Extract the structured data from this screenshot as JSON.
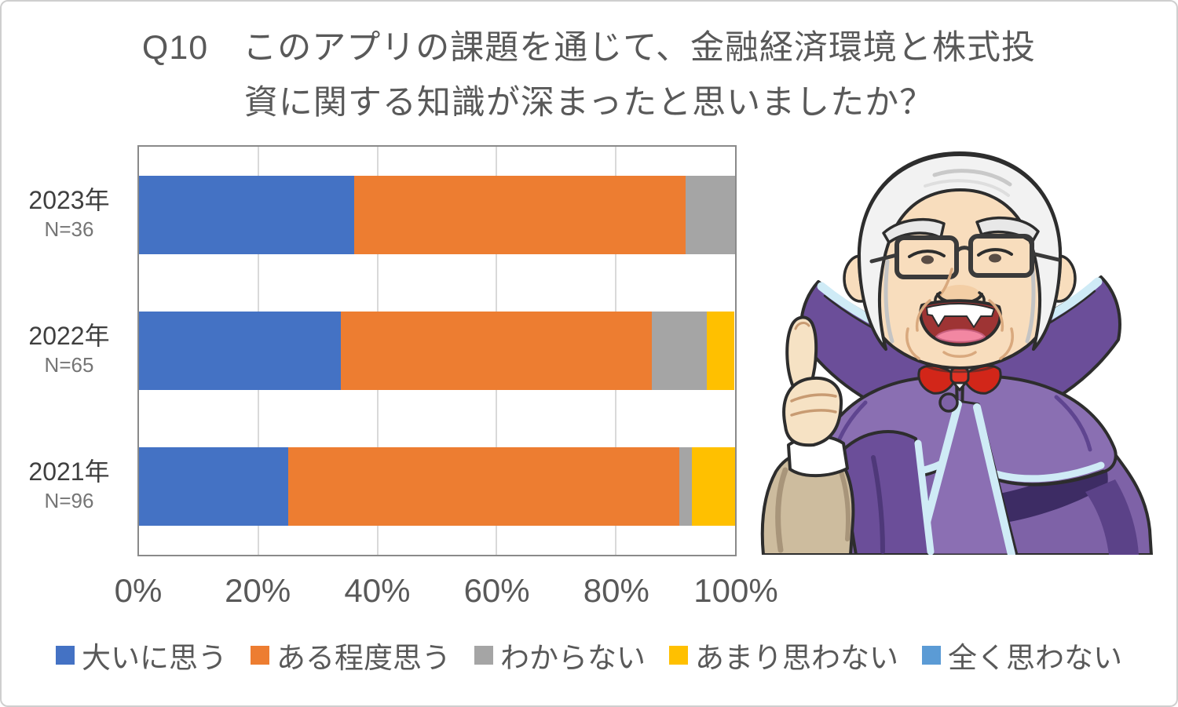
{
  "page": {
    "background": "#ffffff",
    "border_color": "#cfcfcf"
  },
  "chart_data": {
    "type": "bar",
    "stacked": true,
    "orientation": "horizontal",
    "title": "Q10　このアプリの課題を通じて、金融経済環境と株式投資に関する知識が深まったと思いましたか？",
    "title_lines": [
      "Q10　このアプリの課題を通じて、金融経済環境と株式投",
      "資に関する知識が深まったと思いましたか？"
    ],
    "categories": [
      "2023年",
      "2022年",
      "2021年"
    ],
    "category_sublabels": [
      "N=36",
      "N=65",
      "N=96"
    ],
    "series": [
      {
        "name": "大いに思う",
        "color": "#4472C4",
        "values": [
          36.1,
          33.8,
          25.0
        ]
      },
      {
        "name": "ある程度思う",
        "color": "#ED7D31",
        "values": [
          55.6,
          52.3,
          65.6
        ]
      },
      {
        "name": "わからない",
        "color": "#A5A5A5",
        "values": [
          8.3,
          9.2,
          2.1
        ]
      },
      {
        "name": "あまり思わない",
        "color": "#FFC000",
        "values": [
          0,
          4.6,
          7.3
        ]
      },
      {
        "name": "全く思わない",
        "color": "#5B9BD5",
        "values": [
          0,
          0,
          0
        ]
      }
    ],
    "x_ticks": [
      "0%",
      "20%",
      "40%",
      "60%",
      "80%",
      "100%"
    ],
    "xlim": [
      0,
      100
    ],
    "grid": true,
    "legend_position": "bottom"
  },
  "colors": {
    "grid": "#d9d9d9",
    "plot_border": "#8a8a8a",
    "title_text": "#595959",
    "axis_text": "#595959",
    "year_text": "#3f3f3f",
    "count_text": "#757575",
    "legend_text": "#595959"
  }
}
